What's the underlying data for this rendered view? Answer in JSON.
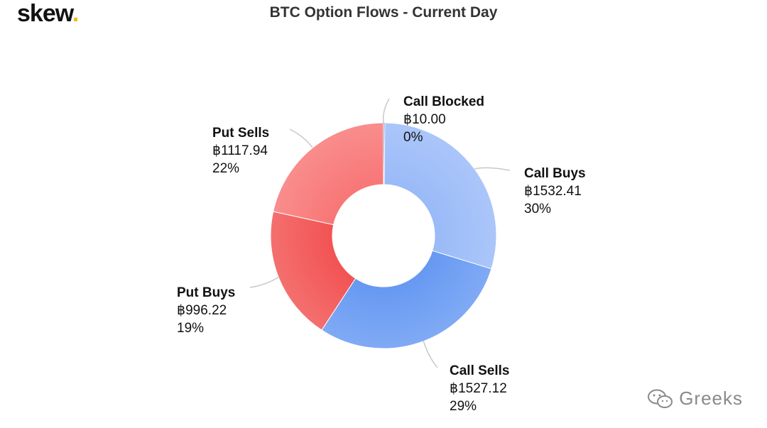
{
  "brand": {
    "name": "skew",
    "dot": "."
  },
  "chart_data": {
    "type": "pie",
    "subtype": "donut",
    "title": "BTC Option Flows - Current Day",
    "unit_symbol": "฿",
    "slices": [
      {
        "label": "Call Blocked",
        "value": 10.0,
        "value_text": "฿10.00",
        "percent_text": "0%",
        "color": "#3a6fd8"
      },
      {
        "label": "Call Buys",
        "value": 1532.41,
        "value_text": "฿1532.41",
        "percent_text": "30%",
        "color": "#98b9f8"
      },
      {
        "label": "Call Sells",
        "value": 1527.12,
        "value_text": "฿1527.12",
        "percent_text": "29%",
        "color": "#6497f2"
      },
      {
        "label": "Put Buys",
        "value": 996.22,
        "value_text": "฿996.22",
        "percent_text": "19%",
        "color": "#f25050"
      },
      {
        "label": "Put Sells",
        "value": 1117.94,
        "value_text": "฿1117.94",
        "percent_text": "22%",
        "color": "#f87474"
      }
    ],
    "start_angle_deg": 0,
    "direction": "clockwise",
    "legend": "none"
  },
  "watermark": {
    "text": "Greeks"
  }
}
